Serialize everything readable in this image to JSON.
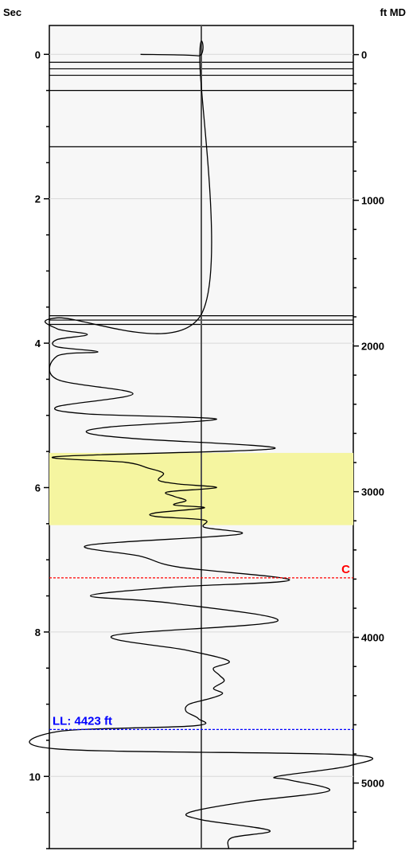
{
  "chart_data": {
    "type": "line",
    "left_axis": {
      "title": "Sec",
      "range": [
        -0.4,
        11.0
      ],
      "major_ticks": [
        0,
        2,
        4,
        6,
        8,
        10
      ],
      "tick_labels": [
        "0",
        "2",
        "4",
        "6",
        "8",
        "10"
      ],
      "minor_step": 0.5
    },
    "right_axis": {
      "title": "ft MD",
      "range": [
        -200,
        5450
      ],
      "major_ticks": [
        0,
        1000,
        2000,
        3000,
        4000,
        5000
      ],
      "tick_labels": [
        "0",
        "1000",
        "2000",
        "3000",
        "4000",
        "5000"
      ],
      "minor_step": 200
    },
    "x_range": [
      -1,
      1
    ],
    "center_line_x": 0,
    "grid": true,
    "highlight_band": {
      "from_sec": 5.52,
      "to_sec": 6.52,
      "color": "#f5f5a0"
    },
    "horizontal_events_sec": [
      0.11,
      0.2,
      0.29,
      0.5,
      1.28,
      3.62,
      3.68,
      3.74
    ],
    "markers": [
      {
        "label": "C",
        "sec": 7.25,
        "color": "#ff0000"
      },
      {
        "label": "LL: 4423 ft",
        "sec": 9.35,
        "color": "#0000ff"
      }
    ],
    "series": [
      {
        "color": "#000000",
        "points": [
          [
            0.0,
            -0.4
          ],
          [
            0.02,
            -0.02
          ],
          [
            0.1,
            -0.01
          ],
          [
            3.6,
            0.0
          ],
          [
            3.65,
            -0.95
          ],
          [
            3.8,
            -0.95
          ],
          [
            3.88,
            -0.75
          ],
          [
            3.95,
            -0.95
          ],
          [
            4.05,
            -0.95
          ],
          [
            4.12,
            -0.68
          ],
          [
            4.18,
            -0.95
          ],
          [
            4.5,
            -0.95
          ],
          [
            4.7,
            -0.45
          ],
          [
            4.88,
            -0.95
          ],
          [
            4.98,
            -0.75
          ],
          [
            5.05,
            0.1
          ],
          [
            5.16,
            -0.6
          ],
          [
            5.24,
            -0.75
          ],
          [
            5.32,
            -0.45
          ],
          [
            5.46,
            0.48
          ],
          [
            5.57,
            -0.95
          ],
          [
            5.65,
            -0.5
          ],
          [
            5.73,
            -0.35
          ],
          [
            5.8,
            -0.25
          ],
          [
            5.9,
            -0.28
          ],
          [
            5.95,
            -0.15
          ],
          [
            6.0,
            0.1
          ],
          [
            6.06,
            -0.22
          ],
          [
            6.12,
            -0.18
          ],
          [
            6.18,
            -0.1
          ],
          [
            6.24,
            -0.18
          ],
          [
            6.28,
            0.02
          ],
          [
            6.35,
            -0.3
          ],
          [
            6.4,
            -0.3
          ],
          [
            6.45,
            0.02
          ],
          [
            6.55,
            0.02
          ],
          [
            6.65,
            0.24
          ],
          [
            6.8,
            -0.75
          ],
          [
            6.95,
            -0.4
          ],
          [
            7.1,
            -0.15
          ],
          [
            7.28,
            0.58
          ],
          [
            7.38,
            -0.2
          ],
          [
            7.5,
            -0.73
          ],
          [
            7.6,
            -0.2
          ],
          [
            7.85,
            0.5
          ],
          [
            8.05,
            -0.58
          ],
          [
            8.25,
            -0.1
          ],
          [
            8.4,
            0.18
          ],
          [
            8.5,
            0.08
          ],
          [
            8.6,
            0.12
          ],
          [
            8.68,
            0.15
          ],
          [
            8.78,
            0.08
          ],
          [
            8.85,
            0.14
          ],
          [
            8.92,
            0.06
          ],
          [
            9.0,
            -0.08
          ],
          [
            9.1,
            -0.1
          ],
          [
            9.2,
            -0.02
          ],
          [
            9.3,
            -0.05
          ],
          [
            9.38,
            -0.95
          ],
          [
            9.62,
            -0.95
          ],
          [
            9.7,
            0.96
          ],
          [
            9.85,
            0.98
          ],
          [
            10.0,
            0.5
          ],
          [
            10.05,
            0.58
          ],
          [
            10.2,
            0.84
          ],
          [
            10.35,
            0.3
          ],
          [
            10.5,
            -0.08
          ],
          [
            10.6,
            0.0
          ],
          [
            10.75,
            0.45
          ],
          [
            10.85,
            0.2
          ],
          [
            11.0,
            0.18
          ]
        ]
      }
    ]
  }
}
